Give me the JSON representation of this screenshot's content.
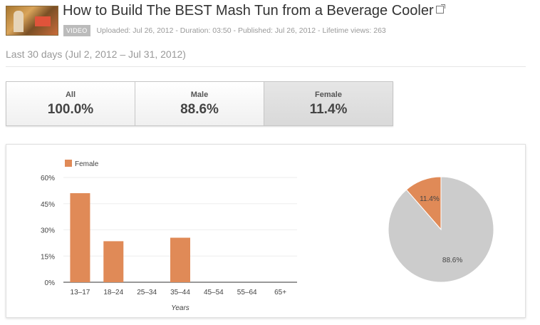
{
  "header": {
    "title": "How to Build The BEST Mash Tun from a Beverage Cooler",
    "badge": "VIDEO",
    "uploaded": "Uploaded: Jul 26, 2012",
    "duration": "Duration: 03:50",
    "published": "Published: Jul 26, 2012",
    "views": "Lifetime views: 263",
    "separator": "-"
  },
  "date_range": "Last 30 days (Jul 2, 2012 – Jul 31, 2012)",
  "tabs": [
    {
      "label": "All",
      "value": "100.0%"
    },
    {
      "label": "Male",
      "value": "88.6%"
    },
    {
      "label": "Female",
      "value": "11.4%"
    }
  ],
  "active_tab": 2,
  "colors": {
    "female": "#e08a57",
    "male": "#cccccc",
    "grid": "#eeeeee"
  },
  "chart_data": [
    {
      "type": "bar",
      "categories": [
        "13–17",
        "18–24",
        "25–34",
        "35–44",
        "45–54",
        "55–64",
        "65+"
      ],
      "series": [
        {
          "name": "Female",
          "values": [
            51,
            23.5,
            0,
            25.5,
            0,
            0,
            0
          ]
        }
      ],
      "xlabel": "Years",
      "ylabel": "",
      "ylim": [
        0,
        60
      ],
      "yticks": [
        "0%",
        "15%",
        "30%",
        "45%",
        "60%"
      ],
      "grid": true,
      "legend": "top-left"
    },
    {
      "type": "pie",
      "slices": [
        {
          "label": "11.4%",
          "value": 11.4,
          "color": "#e08a57"
        },
        {
          "label": "88.6%",
          "value": 88.6,
          "color": "#cccccc"
        }
      ]
    }
  ]
}
